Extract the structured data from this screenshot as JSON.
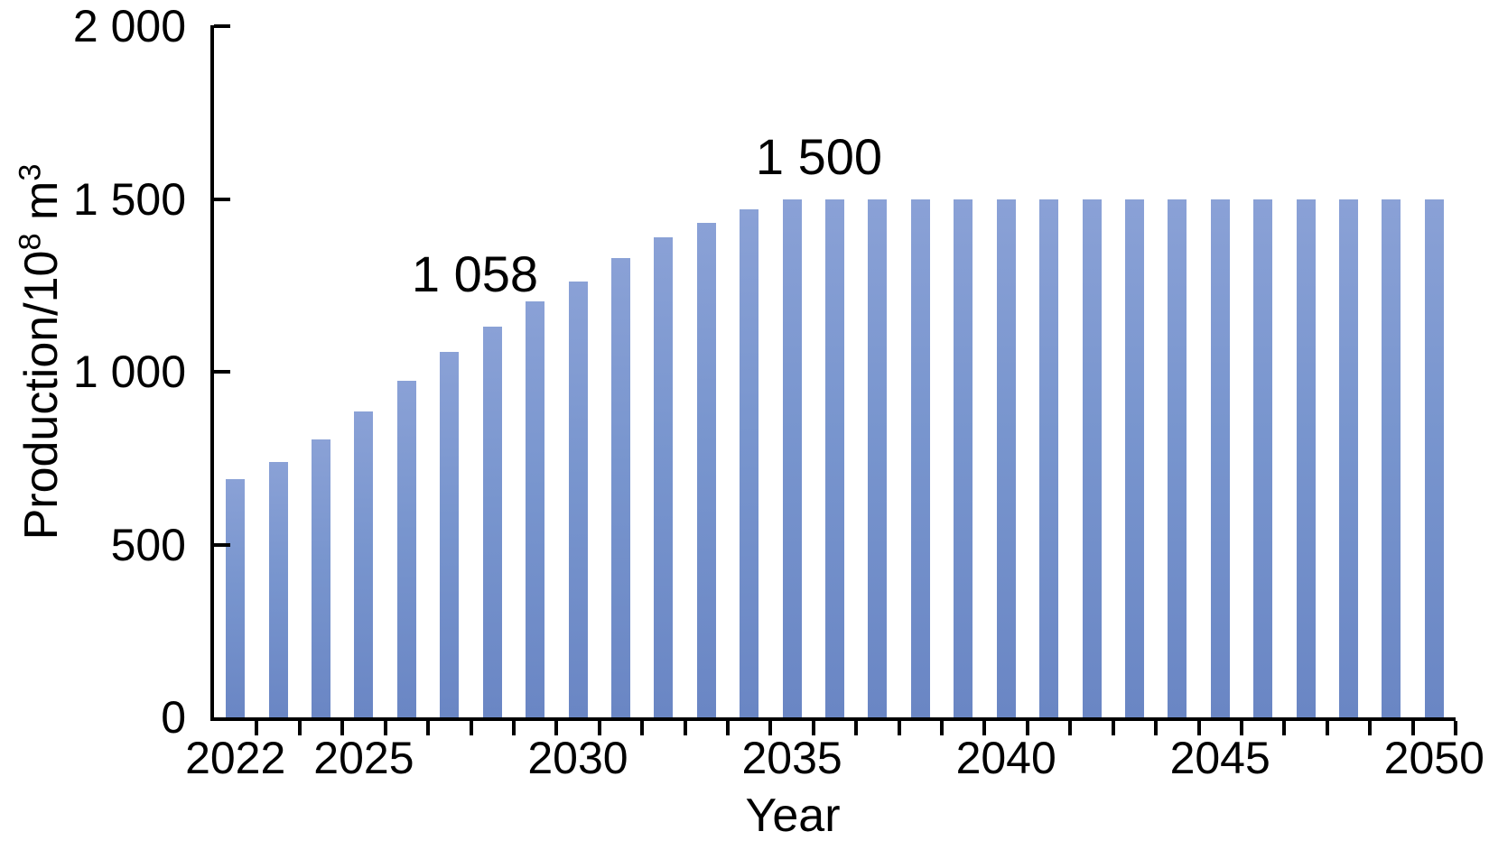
{
  "chart_data": {
    "type": "bar",
    "title": "",
    "xlabel": "Year",
    "ylabel": "Production/10⁸ m³",
    "ylabel_parts": [
      {
        "text": "Production/10",
        "sup": false
      },
      {
        "text": "8",
        "sup": true
      },
      {
        "text": " m",
        "sup": false
      },
      {
        "text": "3",
        "sup": true
      }
    ],
    "categories": [
      "2022",
      "2023",
      "2024",
      "2025",
      "2026",
      "2027",
      "2028",
      "2029",
      "2030",
      "2031",
      "2032",
      "2033",
      "2034",
      "2035",
      "2036",
      "2037",
      "2038",
      "2039",
      "2040",
      "2041",
      "2042",
      "2043",
      "2044",
      "2045",
      "2046",
      "2047",
      "2048",
      "2049",
      "2050"
    ],
    "values": [
      690,
      740,
      805,
      885,
      975,
      1058,
      1130,
      1205,
      1260,
      1330,
      1390,
      1430,
      1470,
      1500,
      1500,
      1500,
      1500,
      1500,
      1500,
      1500,
      1500,
      1500,
      1500,
      1500,
      1500,
      1500,
      1500,
      1500,
      1500
    ],
    "ylim": [
      0,
      2000
    ],
    "yticks": [
      {
        "value": 0,
        "label": "0"
      },
      {
        "value": 500,
        "label": "500"
      },
      {
        "value": 1000,
        "label": "1 000"
      },
      {
        "value": 1500,
        "label": "1 500"
      },
      {
        "value": 2000,
        "label": "2 000"
      }
    ],
    "xtick_labeled_years": [
      "2022",
      "2025",
      "2030",
      "2035",
      "2040",
      "2045",
      "2050"
    ],
    "annotations": [
      {
        "text": "1 058",
        "year": "2027",
        "value": 1058
      },
      {
        "text": "1 500",
        "year": "2035",
        "value": 1500
      }
    ],
    "grid": false,
    "legend": null,
    "colors": {
      "bar_gradient_top": "#8AA1D6",
      "bar_gradient_bottom": "#6A86C4",
      "axis": "#000000",
      "text": "#000000",
      "background": "#FFFFFF"
    }
  }
}
